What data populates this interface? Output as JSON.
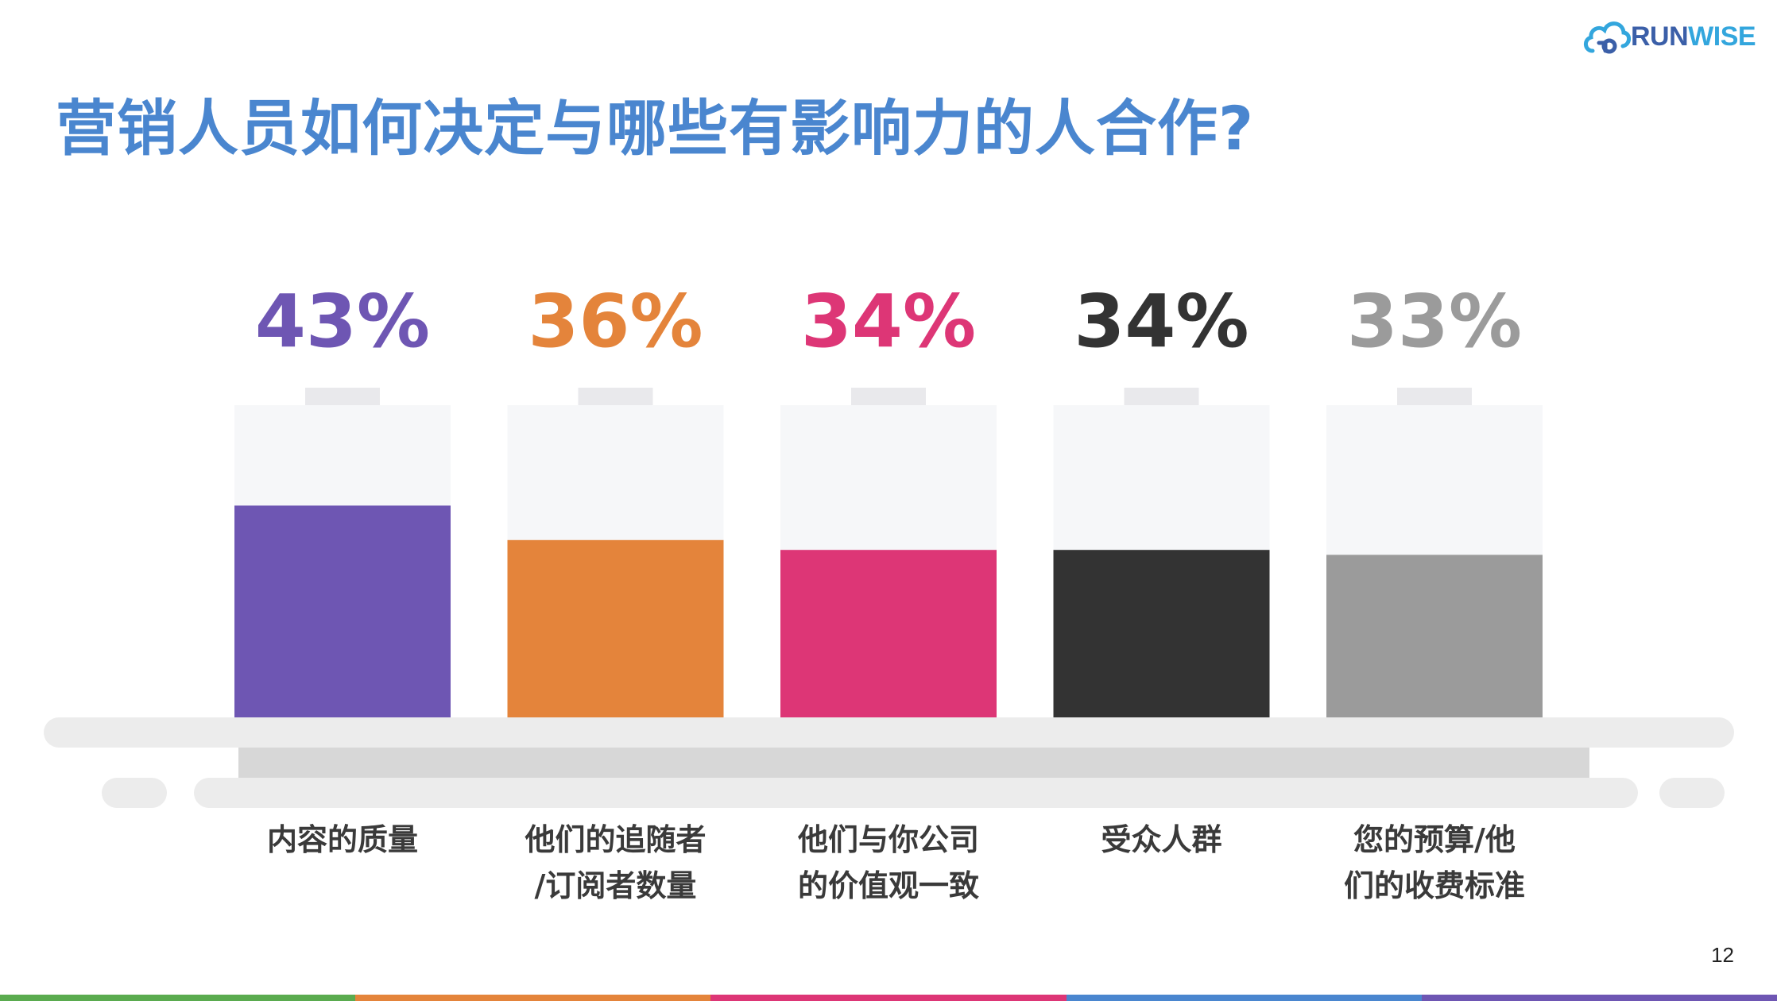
{
  "slide": {
    "title": "营销人员如何决定与哪些有影响力的人合作?",
    "page_number": "12"
  },
  "logo": {
    "icon": "cloud-icon",
    "text_part1": "RUN",
    "text_part2": "WISE",
    "color_part1": "#3b5fa8",
    "color_part2": "#33a6dd"
  },
  "chart_data": {
    "type": "bar",
    "title": "",
    "xlabel": "",
    "ylabel": "",
    "ylim": [
      0,
      100
    ],
    "grid": false,
    "legend": "none",
    "categories": [
      [
        "内容的质量"
      ],
      [
        "他们的追随者",
        "/订阅者数量"
      ],
      [
        "他们与你公司",
        "的价值观一致"
      ],
      [
        "受众人群"
      ],
      [
        "您的预算/他",
        "们的收费标准"
      ]
    ],
    "values": [
      43,
      36,
      34,
      34,
      33
    ],
    "value_labels": [
      "43%",
      "36%",
      "34%",
      "34%",
      "33%"
    ],
    "colors": [
      "#6e56b3",
      "#e4843b",
      "#dd3676",
      "#333333",
      "#9b9b9b"
    ]
  },
  "bottom_stripe_colors": [
    "#5aab4f",
    "#e4843b",
    "#dd3676",
    "#4a86cf",
    "#6e56b3"
  ]
}
